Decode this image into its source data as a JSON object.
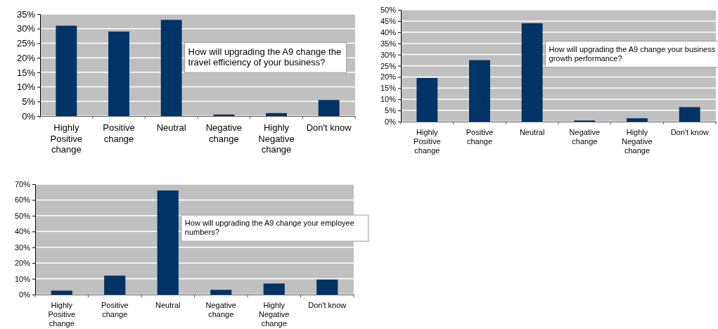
{
  "chart_data": [
    {
      "type": "bar",
      "title": "How will upgrading the A9 change the travel efficiency of your business?",
      "categories": [
        "Highly Positive change",
        "Positive change",
        "Neutral",
        "Negative change",
        "Highly Negative change",
        "Don't know"
      ],
      "values": [
        31,
        29,
        33,
        0.5,
        1,
        5.5
      ],
      "color": "#003366",
      "ylim": [
        0,
        35
      ],
      "yticks": [
        {
          "value": 0,
          "label": "0%"
        },
        {
          "value": 5,
          "label": "5%"
        },
        {
          "value": 10,
          "label": "10%"
        },
        {
          "value": 15,
          "label": "15%"
        },
        {
          "value": 20,
          "label": "20%"
        },
        {
          "value": 25,
          "label": "25%"
        },
        {
          "value": 30,
          "label": "30%"
        },
        {
          "value": 35,
          "label": "35%"
        }
      ],
      "grid": "y"
    },
    {
      "type": "bar",
      "title": "How will upgrading the A9 change your business growth performance?",
      "categories": [
        "Highly Positive change",
        "Positive change",
        "Neutral",
        "Negative change",
        "Highly Negative change",
        "Don't know"
      ],
      "values": [
        19.5,
        27.5,
        44,
        0.5,
        1.5,
        6.5
      ],
      "color": "#003366",
      "ylim": [
        0,
        50
      ],
      "yticks": [
        {
          "value": 0,
          "label": "0%"
        },
        {
          "value": 5,
          "label": "5%"
        },
        {
          "value": 10,
          "label": "10%"
        },
        {
          "value": 15,
          "label": "15%"
        },
        {
          "value": 20,
          "label": "20%"
        },
        {
          "value": 25,
          "label": "25%"
        },
        {
          "value": 30,
          "label": "30%"
        },
        {
          "value": 35,
          "label": "35%"
        },
        {
          "value": 40,
          "label": "40%"
        },
        {
          "value": 45,
          "label": "45%"
        },
        {
          "value": 50,
          "label": "50%"
        }
      ],
      "grid": "y"
    },
    {
      "type": "bar",
      "title": "How will upgrading the A9 change your employee numbers?",
      "categories": [
        "Highly Positive change",
        "Positive change",
        "Neutral",
        "Negative change",
        "Highly Negative change",
        "Don't know"
      ],
      "values": [
        2.5,
        12,
        66,
        3,
        7,
        9.5
      ],
      "color": "#003366",
      "ylim": [
        0,
        70
      ],
      "yticks": [
        {
          "value": 0,
          "label": "0%"
        },
        {
          "value": 10,
          "label": "10%"
        },
        {
          "value": 20,
          "label": "20%"
        },
        {
          "value": 30,
          "label": "30%"
        },
        {
          "value": 40,
          "label": "40%"
        },
        {
          "value": 50,
          "label": "50%"
        },
        {
          "value": 60,
          "label": "60%"
        },
        {
          "value": 70,
          "label": "70%"
        }
      ],
      "grid": "y"
    }
  ]
}
